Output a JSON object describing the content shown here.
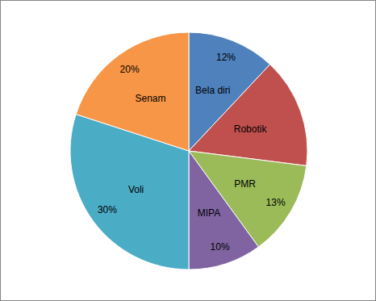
{
  "chart_data": {
    "type": "pie",
    "categories": [
      "Bela diri",
      "Robotik",
      "PMR",
      "MIPA",
      "Voli",
      "Senam"
    ],
    "values": [
      12,
      15,
      13,
      10,
      30,
      20
    ],
    "value_labels": [
      "12%",
      null,
      "13%",
      "10%",
      "30%",
      "20%"
    ],
    "colors": [
      "#4f81bd",
      "#c0504d",
      "#9bbb59",
      "#8064a2",
      "#4bacc6",
      "#f79646"
    ],
    "data_labels": true
  }
}
